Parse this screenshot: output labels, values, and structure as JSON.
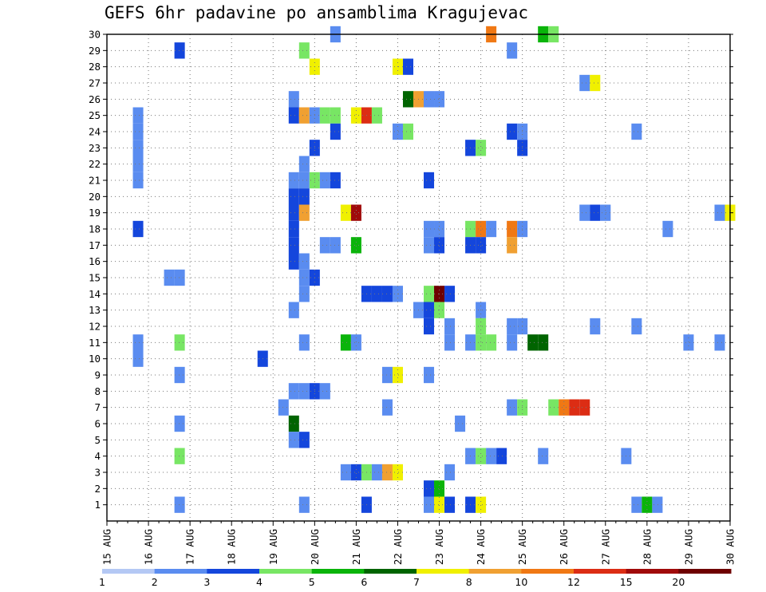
{
  "chart_data": {
    "type": "heatmap",
    "title": "GEFS 6hr padavine po ansamblima Kragujevac",
    "xlabel": "",
    "ylabel": "",
    "x_ticks": [
      "15 AUG",
      "16 AUG",
      "17 AUG",
      "18 AUG",
      "19 AUG",
      "20 AUG",
      "21 AUG",
      "22 AUG",
      "23 AUG",
      "24 AUG",
      "25 AUG",
      "26 AUG",
      "27 AUG",
      "28 AUG",
      "29 AUG",
      "30 AUG"
    ],
    "y_ticks": [
      "1",
      "2",
      "3",
      "4",
      "5",
      "6",
      "7",
      "8",
      "9",
      "10",
      "11",
      "12",
      "13",
      "14",
      "15",
      "16",
      "17",
      "18",
      "19",
      "20",
      "21",
      "22",
      "23",
      "24",
      "25",
      "26",
      "27",
      "28",
      "29",
      "30"
    ],
    "xlim_days": [
      0,
      15
    ],
    "ylim": [
      0,
      30
    ],
    "grid": true,
    "legend": {
      "placement": "bottom",
      "labels": [
        "1",
        "2",
        "3",
        "4",
        "5",
        "6",
        "7",
        "8",
        "10",
        "12",
        "15",
        "20"
      ],
      "colors": [
        "#b4c8f4",
        "#5a8cf0",
        "#1446dc",
        "#78e664",
        "#0ab40a",
        "#006400",
        "#f0f000",
        "#f0a032",
        "#f07814",
        "#dc2d14",
        "#a00a0a",
        "#6e0000"
      ]
    },
    "cells": [
      [
        30,
        5.5,
        1
      ],
      [
        30,
        9.25,
        8
      ],
      [
        30,
        10.5,
        4
      ],
      [
        30,
        10.75,
        3
      ],
      [
        29,
        1.75,
        2
      ],
      [
        29,
        4.75,
        3
      ],
      [
        29,
        9.75,
        1
      ],
      [
        28,
        5.0,
        6
      ],
      [
        28,
        7.0,
        6
      ],
      [
        28,
        7.25,
        2
      ],
      [
        27,
        11.5,
        1
      ],
      [
        27,
        11.75,
        6
      ],
      [
        26,
        4.5,
        1
      ],
      [
        26,
        7.25,
        5
      ],
      [
        26,
        7.5,
        7
      ],
      [
        26,
        7.75,
        1
      ],
      [
        26,
        8.0,
        1
      ],
      [
        25,
        0.75,
        1
      ],
      [
        25,
        4.5,
        2
      ],
      [
        25,
        4.75,
        7
      ],
      [
        25,
        5.0,
        1
      ],
      [
        25,
        5.25,
        3
      ],
      [
        25,
        5.5,
        3
      ],
      [
        25,
        6.0,
        6
      ],
      [
        25,
        6.25,
        9
      ],
      [
        25,
        6.5,
        3
      ],
      [
        24,
        0.75,
        1
      ],
      [
        24,
        5.5,
        2
      ],
      [
        24,
        7.0,
        1
      ],
      [
        24,
        7.25,
        3
      ],
      [
        24,
        9.75,
        2
      ],
      [
        24,
        10.0,
        1
      ],
      [
        24,
        12.75,
        1
      ],
      [
        23,
        0.75,
        1
      ],
      [
        23,
        5.0,
        2
      ],
      [
        23,
        8.75,
        2
      ],
      [
        23,
        9.0,
        3
      ],
      [
        23,
        10.0,
        2
      ],
      [
        22,
        0.75,
        1
      ],
      [
        22,
        4.75,
        1
      ],
      [
        21,
        0.75,
        1
      ],
      [
        21,
        4.5,
        1
      ],
      [
        21,
        4.75,
        1
      ],
      [
        21,
        5.0,
        3
      ],
      [
        21,
        5.25,
        1
      ],
      [
        21,
        5.5,
        2
      ],
      [
        21,
        7.75,
        2
      ],
      [
        20,
        4.5,
        2
      ],
      [
        20,
        4.75,
        2
      ],
      [
        19,
        4.5,
        2
      ],
      [
        19,
        4.75,
        7
      ],
      [
        19,
        5.75,
        6
      ],
      [
        19,
        6.0,
        10
      ],
      [
        19,
        11.5,
        1
      ],
      [
        19,
        11.75,
        2
      ],
      [
        19,
        12.0,
        1
      ],
      [
        19,
        14.75,
        1
      ],
      [
        19,
        15.0,
        6
      ],
      [
        18,
        0.75,
        2
      ],
      [
        18,
        4.5,
        2
      ],
      [
        18,
        7.75,
        1
      ],
      [
        18,
        8.0,
        1
      ],
      [
        18,
        8.75,
        3
      ],
      [
        18,
        9.0,
        8
      ],
      [
        18,
        9.25,
        1
      ],
      [
        18,
        9.75,
        8
      ],
      [
        18,
        10.0,
        1
      ],
      [
        18,
        13.5,
        1
      ],
      [
        17,
        4.5,
        2
      ],
      [
        17,
        5.25,
        1
      ],
      [
        17,
        5.5,
        1
      ],
      [
        17,
        6.0,
        4
      ],
      [
        17,
        7.75,
        1
      ],
      [
        17,
        8.0,
        2
      ],
      [
        17,
        8.75,
        2
      ],
      [
        17,
        9.0,
        2
      ],
      [
        17,
        9.75,
        7
      ],
      [
        16,
        4.5,
        2
      ],
      [
        16,
        4.75,
        1
      ],
      [
        15,
        1.5,
        1
      ],
      [
        15,
        1.75,
        1
      ],
      [
        15,
        4.75,
        1
      ],
      [
        15,
        5.0,
        2
      ],
      [
        14,
        4.75,
        1
      ],
      [
        14,
        6.25,
        2
      ],
      [
        14,
        6.5,
        2
      ],
      [
        14,
        6.75,
        2
      ],
      [
        14,
        7.0,
        1
      ],
      [
        14,
        7.75,
        3
      ],
      [
        14,
        8.0,
        11
      ],
      [
        14,
        8.25,
        2
      ],
      [
        13,
        4.5,
        1
      ],
      [
        13,
        7.5,
        1
      ],
      [
        13,
        7.75,
        2
      ],
      [
        13,
        8.0,
        3
      ],
      [
        13,
        9.0,
        1
      ],
      [
        12,
        7.75,
        2
      ],
      [
        12,
        8.25,
        1
      ],
      [
        12,
        9.0,
        3
      ],
      [
        12,
        9.75,
        1
      ],
      [
        12,
        10.0,
        1
      ],
      [
        12,
        11.75,
        1
      ],
      [
        12,
        12.75,
        1
      ],
      [
        11,
        0.75,
        1
      ],
      [
        11,
        1.75,
        3
      ],
      [
        11,
        4.75,
        1
      ],
      [
        11,
        5.75,
        4
      ],
      [
        11,
        6.0,
        1
      ],
      [
        11,
        8.25,
        1
      ],
      [
        11,
        8.75,
        1
      ],
      [
        11,
        9.0,
        3
      ],
      [
        11,
        9.25,
        3
      ],
      [
        11,
        9.75,
        1
      ],
      [
        11,
        10.25,
        5
      ],
      [
        11,
        10.5,
        5
      ],
      [
        11,
        14.0,
        1
      ],
      [
        11,
        14.75,
        1
      ],
      [
        10,
        0.75,
        1
      ],
      [
        10,
        3.75,
        2
      ],
      [
        9,
        1.75,
        1
      ],
      [
        9,
        6.75,
        1
      ],
      [
        9,
        7.0,
        6
      ],
      [
        9,
        7.75,
        1
      ],
      [
        8,
        4.5,
        1
      ],
      [
        8,
        4.75,
        1
      ],
      [
        8,
        5.0,
        2
      ],
      [
        8,
        5.25,
        1
      ],
      [
        7,
        4.25,
        1
      ],
      [
        7,
        6.75,
        1
      ],
      [
        7,
        9.75,
        1
      ],
      [
        7,
        10.0,
        3
      ],
      [
        7,
        10.75,
        3
      ],
      [
        7,
        11.0,
        8
      ],
      [
        7,
        11.25,
        9
      ],
      [
        7,
        11.5,
        9
      ],
      [
        6,
        1.75,
        1
      ],
      [
        6,
        4.5,
        5
      ],
      [
        6,
        8.5,
        1
      ],
      [
        5,
        4.5,
        1
      ],
      [
        5,
        4.75,
        2
      ],
      [
        4,
        1.75,
        3
      ],
      [
        4,
        8.75,
        1
      ],
      [
        4,
        9.0,
        3
      ],
      [
        4,
        9.25,
        1
      ],
      [
        4,
        9.5,
        2
      ],
      [
        4,
        10.5,
        1
      ],
      [
        4,
        12.5,
        1
      ],
      [
        3,
        5.75,
        1
      ],
      [
        3,
        6.0,
        2
      ],
      [
        3,
        6.25,
        3
      ],
      [
        3,
        6.5,
        1
      ],
      [
        3,
        6.75,
        7
      ],
      [
        3,
        7.0,
        6
      ],
      [
        3,
        8.25,
        1
      ],
      [
        2,
        7.75,
        2
      ],
      [
        2,
        8.0,
        4
      ],
      [
        1,
        1.75,
        1
      ],
      [
        1,
        4.75,
        1
      ],
      [
        1,
        6.25,
        2
      ],
      [
        1,
        7.75,
        1
      ],
      [
        1,
        8.0,
        6
      ],
      [
        1,
        8.25,
        2
      ],
      [
        1,
        8.75,
        2
      ],
      [
        1,
        9.0,
        6
      ],
      [
        1,
        12.75,
        1
      ],
      [
        1,
        13.0,
        4
      ],
      [
        1,
        13.25,
        1
      ]
    ]
  }
}
